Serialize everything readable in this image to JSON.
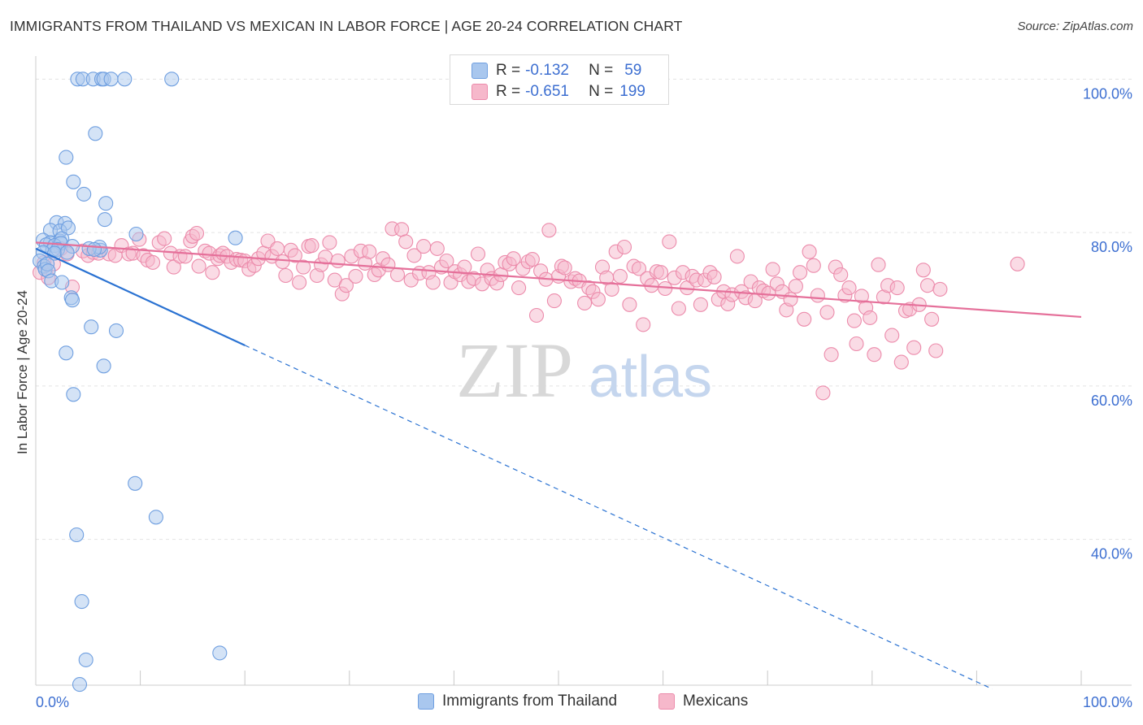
{
  "title": "IMMIGRANTS FROM THAILAND VS MEXICAN IN LABOR FORCE | AGE 20-24 CORRELATION CHART",
  "source": "Source: ZipAtlas.com",
  "watermark": {
    "zip": "ZIP",
    "atlas": "atlas"
  },
  "colors": {
    "blue_fill": "#a9c7ee",
    "blue_stroke": "#6f9fe0",
    "blue_line": "#2a72d2",
    "pink_fill": "#f6b8cb",
    "pink_stroke": "#ec8bab",
    "pink_line": "#e5709a",
    "grid": "#e3e3e3",
    "axis_label": "#3d6fd1"
  },
  "stats": {
    "r_label": "R =",
    "n_label": "N =",
    "rows": [
      {
        "name": "Immigrants from Thailand",
        "r": "-0.132",
        "n": "59",
        "swatch": "blue"
      },
      {
        "name": "Mexicans",
        "r": "-0.651",
        "n": "199",
        "swatch": "pink"
      }
    ]
  },
  "legend": [
    {
      "label": "Immigrants from Thailand",
      "swatch": "blue"
    },
    {
      "label": "Mexicans",
      "swatch": "pink"
    }
  ],
  "chart_data": {
    "type": "scatter",
    "xlabel": "",
    "ylabel": "In Labor Force | Age 20-24",
    "xlim": [
      0,
      100
    ],
    "ylim": [
      21,
      103
    ],
    "x_tick_labels": [
      {
        "value": 0,
        "label": "0.0%"
      },
      {
        "value": 100,
        "label": "100.0%"
      }
    ],
    "y_tick_labels": [
      {
        "value": 100,
        "label": "100.0%"
      },
      {
        "value": 80,
        "label": "80.0%"
      },
      {
        "value": 60,
        "label": "60.0%"
      },
      {
        "value": 40,
        "label": "40.0%"
      }
    ],
    "y_gridlines": [
      100,
      80,
      60,
      40
    ],
    "x_minor_ticks": [
      10,
      20,
      30,
      40,
      50,
      60,
      70,
      80,
      90,
      100
    ],
    "series": [
      {
        "name": "Immigrants from Thailand",
        "color": "blue",
        "points": [
          [
            4.0,
            100
          ],
          [
            4.5,
            100
          ],
          [
            5.5,
            100
          ],
          [
            6.3,
            100
          ],
          [
            6.5,
            100
          ],
          [
            7.2,
            100
          ],
          [
            8.5,
            100
          ],
          [
            13.0,
            100
          ],
          [
            5.7,
            92.9
          ],
          [
            2.9,
            89.8
          ],
          [
            3.6,
            86.6
          ],
          [
            4.6,
            85.0
          ],
          [
            6.7,
            83.8
          ],
          [
            6.6,
            81.7
          ],
          [
            2.0,
            81.3
          ],
          [
            2.8,
            81.2
          ],
          [
            1.4,
            80.3
          ],
          [
            2.3,
            80.2
          ],
          [
            3.1,
            80.6
          ],
          [
            9.6,
            79.8
          ],
          [
            19.1,
            79.3
          ],
          [
            0.7,
            79.0
          ],
          [
            1.4,
            78.7
          ],
          [
            2.3,
            78.9
          ],
          [
            2.5,
            79.2
          ],
          [
            1.0,
            78.4
          ],
          [
            1.8,
            78.3
          ],
          [
            2.4,
            78.6
          ],
          [
            3.5,
            78.2
          ],
          [
            6.2,
            77.7
          ],
          [
            6.1,
            78.1
          ],
          [
            1.6,
            77.7
          ],
          [
            2.1,
            77.8
          ],
          [
            0.7,
            77.4
          ],
          [
            1.8,
            77.3
          ],
          [
            3.0,
            77.4
          ],
          [
            5.1,
            77.9
          ],
          [
            5.6,
            77.8
          ],
          [
            0.4,
            76.3
          ],
          [
            0.8,
            75.6
          ],
          [
            0.9,
            75.2
          ],
          [
            1.1,
            75.9
          ],
          [
            1.2,
            75.0
          ],
          [
            1.5,
            73.7
          ],
          [
            2.5,
            73.5
          ],
          [
            3.4,
            71.5
          ],
          [
            3.5,
            71.2
          ],
          [
            5.3,
            67.7
          ],
          [
            7.7,
            67.2
          ],
          [
            2.9,
            64.3
          ],
          [
            6.5,
            62.6
          ],
          [
            3.6,
            58.9
          ],
          [
            9.5,
            47.3
          ],
          [
            11.5,
            42.9
          ],
          [
            3.9,
            40.6
          ],
          [
            4.4,
            31.9
          ],
          [
            4.8,
            24.3
          ],
          [
            17.6,
            25.2
          ],
          [
            4.2,
            21.1
          ]
        ]
      },
      {
        "name": "Mexicans",
        "color": "pink",
        "points": [
          [
            0.4,
            74.8
          ],
          [
            0.8,
            76.1
          ],
          [
            1.2,
            74.1
          ],
          [
            1.7,
            75.9
          ],
          [
            2.4,
            77.9
          ],
          [
            3.0,
            77.2
          ],
          [
            3.5,
            72.9
          ],
          [
            4.5,
            77.6
          ],
          [
            5.0,
            77.0
          ],
          [
            5.5,
            77.4
          ],
          [
            6.0,
            77.3
          ],
          [
            7.0,
            77.2
          ],
          [
            7.6,
            77.0
          ],
          [
            8.2,
            78.3
          ],
          [
            8.9,
            77.2
          ],
          [
            9.3,
            77.3
          ],
          [
            9.9,
            79.1
          ],
          [
            10.3,
            77.0
          ],
          [
            10.7,
            76.4
          ],
          [
            11.2,
            76.1
          ],
          [
            11.8,
            78.7
          ],
          [
            12.3,
            79.2
          ],
          [
            12.9,
            77.3
          ],
          [
            13.2,
            75.5
          ],
          [
            13.8,
            76.9
          ],
          [
            14.3,
            76.9
          ],
          [
            14.8,
            78.9
          ],
          [
            15.0,
            79.5
          ],
          [
            15.4,
            79.9
          ],
          [
            15.6,
            75.6
          ],
          [
            16.2,
            77.6
          ],
          [
            16.6,
            77.3
          ],
          [
            16.9,
            74.8
          ],
          [
            17.4,
            76.6
          ],
          [
            17.6,
            77.0
          ],
          [
            17.9,
            77.3
          ],
          [
            18.3,
            76.9
          ],
          [
            18.7,
            76.1
          ],
          [
            19.2,
            76.5
          ],
          [
            19.6,
            76.4
          ],
          [
            20.0,
            76.3
          ],
          [
            20.4,
            75.2
          ],
          [
            20.9,
            75.7
          ],
          [
            21.3,
            76.6
          ],
          [
            21.8,
            77.3
          ],
          [
            22.2,
            78.9
          ],
          [
            22.6,
            76.9
          ],
          [
            23.1,
            77.9
          ],
          [
            23.6,
            76.2
          ],
          [
            23.9,
            74.4
          ],
          [
            24.4,
            77.7
          ],
          [
            24.8,
            77.0
          ],
          [
            25.2,
            73.5
          ],
          [
            25.6,
            75.5
          ],
          [
            26.1,
            78.2
          ],
          [
            26.4,
            78.3
          ],
          [
            26.9,
            74.4
          ],
          [
            27.3,
            75.8
          ],
          [
            27.7,
            76.8
          ],
          [
            28.1,
            78.7
          ],
          [
            28.6,
            73.8
          ],
          [
            28.9,
            76.3
          ],
          [
            29.3,
            72.0
          ],
          [
            29.7,
            73.1
          ],
          [
            30.2,
            76.9
          ],
          [
            30.6,
            74.3
          ],
          [
            31.1,
            77.6
          ],
          [
            31.5,
            76.0
          ],
          [
            31.9,
            77.5
          ],
          [
            32.4,
            74.5
          ],
          [
            32.8,
            75.1
          ],
          [
            33.2,
            76.6
          ],
          [
            33.7,
            75.8
          ],
          [
            34.1,
            80.5
          ],
          [
            34.6,
            74.5
          ],
          [
            35.0,
            80.4
          ],
          [
            35.4,
            78.8
          ],
          [
            35.9,
            73.8
          ],
          [
            36.2,
            77.0
          ],
          [
            36.7,
            74.7
          ],
          [
            37.1,
            78.2
          ],
          [
            37.6,
            74.8
          ],
          [
            38.0,
            73.5
          ],
          [
            38.4,
            77.9
          ],
          [
            38.8,
            75.5
          ],
          [
            39.3,
            76.3
          ],
          [
            39.7,
            73.5
          ],
          [
            40.1,
            74.9
          ],
          [
            40.6,
            74.5
          ],
          [
            41.0,
            75.5
          ],
          [
            41.4,
            73.6
          ],
          [
            41.9,
            74.0
          ],
          [
            42.3,
            77.2
          ],
          [
            42.7,
            73.3
          ],
          [
            43.2,
            75.1
          ],
          [
            43.6,
            74.0
          ],
          [
            44.1,
            73.4
          ],
          [
            44.5,
            74.5
          ],
          [
            44.9,
            76.1
          ],
          [
            45.3,
            75.9
          ],
          [
            45.7,
            76.6
          ],
          [
            46.2,
            72.8
          ],
          [
            46.6,
            75.3
          ],
          [
            47.1,
            76.2
          ],
          [
            47.5,
            76.5
          ],
          [
            47.9,
            69.2
          ],
          [
            48.3,
            75.0
          ],
          [
            48.8,
            73.9
          ],
          [
            49.1,
            80.3
          ],
          [
            49.6,
            71.1
          ],
          [
            50.0,
            74.3
          ],
          [
            50.3,
            75.6
          ],
          [
            50.6,
            75.4
          ],
          [
            51.2,
            73.6
          ],
          [
            51.6,
            74.0
          ],
          [
            52.0,
            73.7
          ],
          [
            52.5,
            70.8
          ],
          [
            52.9,
            72.8
          ],
          [
            53.3,
            72.3
          ],
          [
            53.8,
            71.3
          ],
          [
            54.2,
            75.5
          ],
          [
            54.6,
            74.1
          ],
          [
            55.1,
            72.6
          ],
          [
            55.5,
            77.5
          ],
          [
            55.9,
            74.3
          ],
          [
            56.3,
            78.1
          ],
          [
            56.8,
            70.6
          ],
          [
            57.2,
            75.6
          ],
          [
            57.7,
            75.3
          ],
          [
            58.1,
            68.0
          ],
          [
            58.5,
            74.0
          ],
          [
            58.9,
            73.1
          ],
          [
            59.4,
            74.9
          ],
          [
            59.8,
            74.8
          ],
          [
            60.2,
            72.7
          ],
          [
            60.6,
            78.8
          ],
          [
            61.1,
            74.1
          ],
          [
            61.5,
            70.1
          ],
          [
            61.9,
            74.8
          ],
          [
            62.3,
            72.8
          ],
          [
            62.8,
            74.3
          ],
          [
            63.2,
            73.8
          ],
          [
            63.6,
            70.6
          ],
          [
            64.0,
            73.8
          ],
          [
            64.5,
            74.8
          ],
          [
            64.9,
            74.2
          ],
          [
            65.3,
            71.3
          ],
          [
            65.8,
            72.3
          ],
          [
            66.2,
            70.7
          ],
          [
            66.6,
            71.9
          ],
          [
            67.1,
            76.9
          ],
          [
            67.5,
            72.3
          ],
          [
            67.9,
            71.5
          ],
          [
            68.4,
            73.6
          ],
          [
            68.8,
            71.1
          ],
          [
            69.2,
            72.8
          ],
          [
            69.6,
            72.4
          ],
          [
            70.1,
            72.1
          ],
          [
            70.5,
            75.2
          ],
          [
            70.9,
            73.3
          ],
          [
            71.4,
            72.3
          ],
          [
            71.8,
            69.9
          ],
          [
            72.2,
            71.3
          ],
          [
            72.7,
            73.0
          ],
          [
            73.1,
            74.8
          ],
          [
            73.5,
            68.7
          ],
          [
            74.0,
            77.5
          ],
          [
            74.4,
            75.7
          ],
          [
            74.8,
            71.8
          ],
          [
            75.3,
            59.1
          ],
          [
            75.7,
            69.6
          ],
          [
            76.1,
            64.1
          ],
          [
            76.5,
            75.5
          ],
          [
            77.0,
            74.5
          ],
          [
            77.4,
            71.8
          ],
          [
            77.8,
            72.8
          ],
          [
            78.3,
            68.5
          ],
          [
            78.5,
            65.5
          ],
          [
            79.0,
            71.7
          ],
          [
            79.4,
            70.2
          ],
          [
            79.8,
            68.9
          ],
          [
            80.2,
            64.1
          ],
          [
            80.6,
            75.8
          ],
          [
            81.1,
            71.6
          ],
          [
            81.5,
            73.1
          ],
          [
            81.9,
            66.6
          ],
          [
            82.4,
            72.8
          ],
          [
            82.8,
            63.1
          ],
          [
            83.2,
            69.8
          ],
          [
            83.6,
            70.0
          ],
          [
            84.0,
            65.0
          ],
          [
            84.5,
            70.6
          ],
          [
            84.9,
            75.1
          ],
          [
            85.3,
            73.1
          ],
          [
            85.7,
            68.7
          ],
          [
            86.1,
            64.6
          ],
          [
            86.5,
            72.6
          ],
          [
            93.9,
            75.9
          ]
        ]
      }
    ],
    "trend_lines": [
      {
        "series": "Immigrants from Thailand",
        "solid": [
          [
            0,
            77.9
          ],
          [
            20,
            65.3
          ]
        ],
        "dashed": [
          [
            20,
            65.3
          ],
          [
            91.5,
            20.5
          ]
        ]
      },
      {
        "series": "Mexicans",
        "solid": [
          [
            0,
            78.7
          ],
          [
            100,
            69.0
          ]
        ]
      }
    ]
  }
}
